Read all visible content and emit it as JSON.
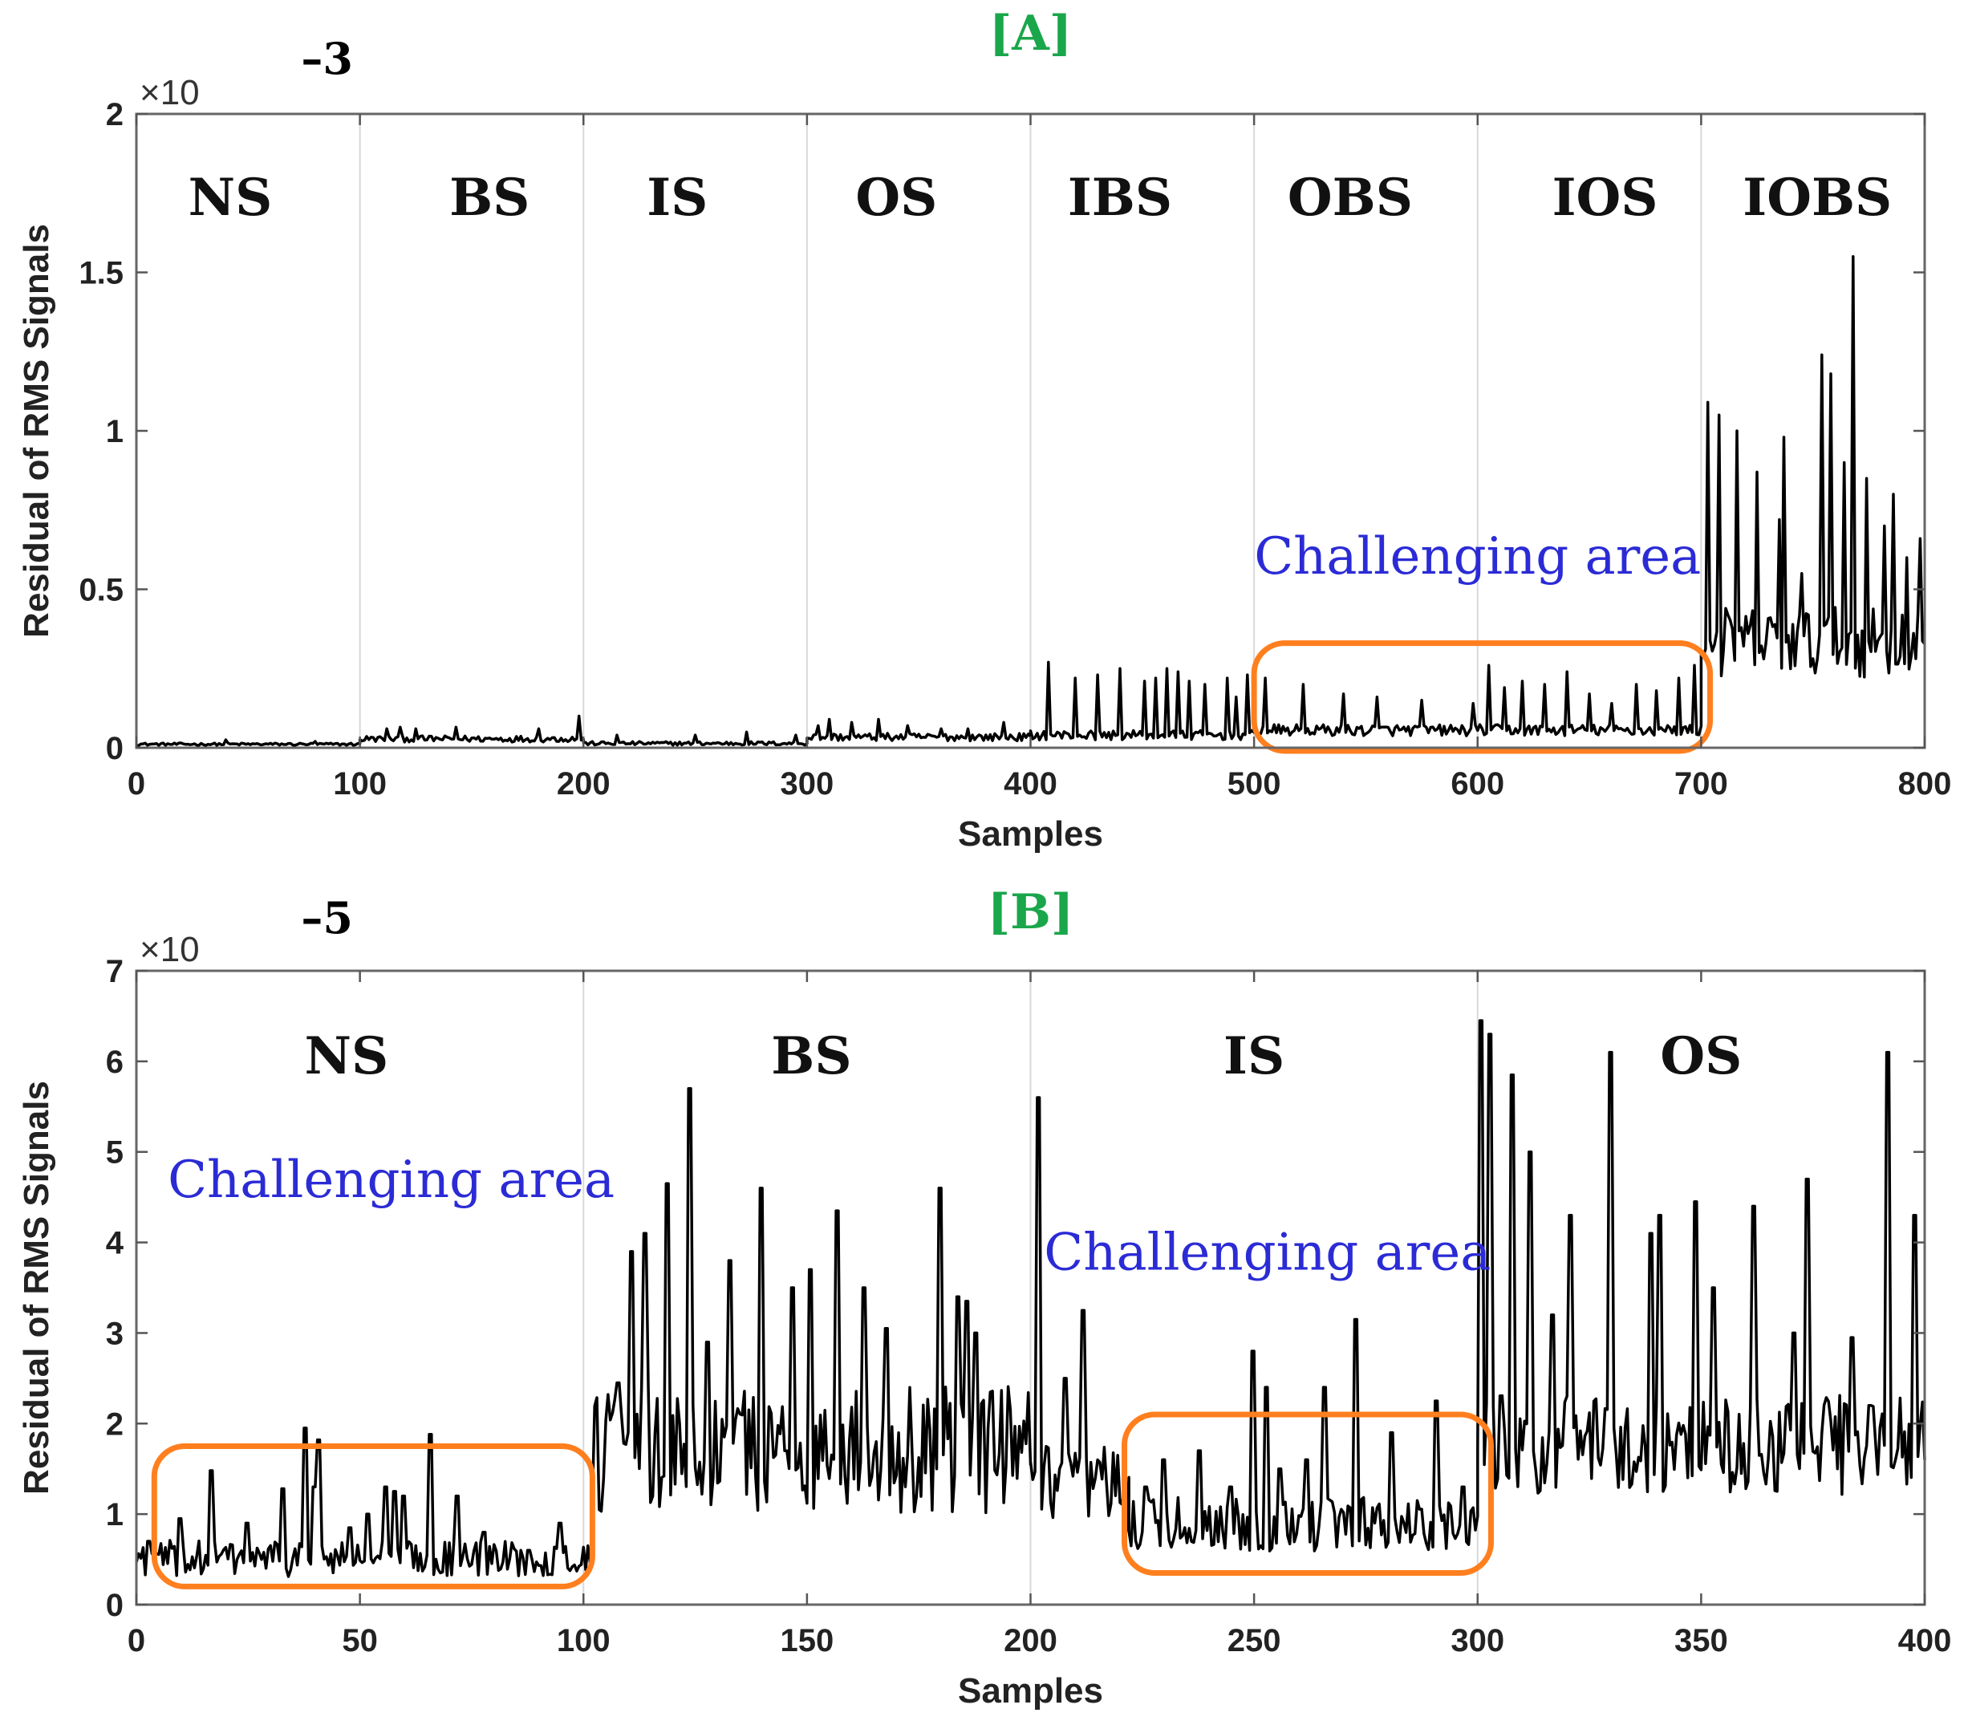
{
  "chart_data": [
    {
      "panel": "[A]",
      "type": "line",
      "title": "[A]",
      "xlabel": "Samples",
      "ylabel": "Residual of RMS Signals",
      "xlim": [
        0,
        800
      ],
      "ylim": [
        0,
        2
      ],
      "exponent_prefix": "×10",
      "exponent_power": "–3",
      "x_ticks": [
        "0",
        "100",
        "200",
        "300",
        "400",
        "500",
        "600",
        "700",
        "800"
      ],
      "y_ticks": [
        "0",
        "0.5",
        "1",
        "1.5",
        "2"
      ],
      "grid": false,
      "region_boundaries": [
        100,
        200,
        300,
        400,
        500,
        600,
        700
      ],
      "regions": [
        {
          "label": "NS",
          "x_center": 42
        },
        {
          "label": "BS",
          "x_center": 158
        },
        {
          "label": "IS",
          "x_center": 242
        },
        {
          "label": "OS",
          "x_center": 340
        },
        {
          "label": "IBS",
          "x_center": 440
        },
        {
          "label": "OBS",
          "x_center": 543
        },
        {
          "label": "IOS",
          "x_center": 657
        },
        {
          "label": "IOBS",
          "x_center": 752
        }
      ],
      "annotations": [
        {
          "text": "Challenging area",
          "x": 600,
          "y": 0.55
        }
      ],
      "highlight_boxes": [
        {
          "x0": 500,
          "x1": 704,
          "y0": -0.01,
          "y1": 0.33
        }
      ],
      "series": [
        {
          "name": "Residual",
          "segments": [
            {
              "x0": 0,
              "x1": 100,
              "base": 0.01,
              "noise": 0.004,
              "spikes": [
                [
                  40,
                  0.025
                ],
                [
                  80,
                  0.02
                ]
              ]
            },
            {
              "x0": 100,
              "x1": 200,
              "base": 0.025,
              "noise": 0.01,
              "spikes": [
                [
                  112,
                  0.06
                ],
                [
                  118,
                  0.065
                ],
                [
                  125,
                  0.06
                ],
                [
                  143,
                  0.065
                ],
                [
                  180,
                  0.06
                ],
                [
                  198,
                  0.1
                ]
              ]
            },
            {
              "x0": 200,
              "x1": 300,
              "base": 0.012,
              "noise": 0.006,
              "spikes": [
                [
                  215,
                  0.04
                ],
                [
                  250,
                  0.04
                ],
                [
                  273,
                  0.05
                ],
                [
                  295,
                  0.04
                ]
              ]
            },
            {
              "x0": 300,
              "x1": 400,
              "base": 0.03,
              "noise": 0.012,
              "spikes": [
                [
                  305,
                  0.07
                ],
                [
                  310,
                  0.09
                ],
                [
                  320,
                  0.08
                ],
                [
                  332,
                  0.09
                ],
                [
                  345,
                  0.07
                ],
                [
                  360,
                  0.06
                ],
                [
                  372,
                  0.06
                ],
                [
                  388,
                  0.08
                ]
              ]
            },
            {
              "x0": 400,
              "x1": 500,
              "base": 0.035,
              "noise": 0.015,
              "spikes": [
                [
                  408,
                  0.27
                ],
                [
                  420,
                  0.22
                ],
                [
                  430,
                  0.23
                ],
                [
                  440,
                  0.25
                ],
                [
                  451,
                  0.21
                ],
                [
                  456,
                  0.22
                ],
                [
                  461,
                  0.25
                ],
                [
                  466,
                  0.24
                ],
                [
                  471,
                  0.21
                ],
                [
                  478,
                  0.2
                ],
                [
                  488,
                  0.22
                ],
                [
                  492,
                  0.16
                ],
                [
                  497,
                  0.23
                ]
              ]
            },
            {
              "x0": 500,
              "x1": 700,
              "base": 0.05,
              "noise": 0.018,
              "spikes": [
                [
                  505,
                  0.22
                ],
                [
                  522,
                  0.2
                ],
                [
                  540,
                  0.17
                ],
                [
                  555,
                  0.16
                ],
                [
                  575,
                  0.15
                ],
                [
                  598,
                  0.14
                ],
                [
                  605,
                  0.26
                ],
                [
                  612,
                  0.19
                ],
                [
                  620,
                  0.21
                ],
                [
                  630,
                  0.2
                ],
                [
                  640,
                  0.24
                ],
                [
                  650,
                  0.17
                ],
                [
                  660,
                  0.14
                ],
                [
                  671,
                  0.2
                ],
                [
                  680,
                  0.18
                ],
                [
                  690,
                  0.22
                ],
                [
                  697,
                  0.26
                ]
              ]
            },
            {
              "x0": 700,
              "x1": 800,
              "base": 0.3,
              "noise": 0.11,
              "spikes": [
                [
                  703,
                  1.09
                ],
                [
                  708,
                  1.05
                ],
                [
                  716,
                  1.0
                ],
                [
                  725,
                  0.87
                ],
                [
                  735,
                  0.72
                ],
                [
                  737,
                  0.98
                ],
                [
                  745,
                  0.55
                ],
                [
                  754,
                  1.24
                ],
                [
                  758,
                  1.18
                ],
                [
                  764,
                  0.9
                ],
                [
                  768,
                  1.55
                ],
                [
                  774,
                  0.85
                ],
                [
                  782,
                  0.7
                ],
                [
                  786,
                  0.8
                ],
                [
                  792,
                  0.6
                ],
                [
                  798,
                  0.66
                ]
              ]
            }
          ]
        }
      ]
    },
    {
      "panel": "[B]",
      "type": "line",
      "title": "[B]",
      "xlabel": "Samples",
      "ylabel": "Residual of RMS Signals",
      "xlim": [
        0,
        400
      ],
      "ylim": [
        0,
        7
      ],
      "exponent_prefix": "×10",
      "exponent_power": "–5",
      "x_ticks": [
        "0",
        "50",
        "100",
        "150",
        "200",
        "250",
        "300",
        "350",
        "400"
      ],
      "y_ticks": [
        "0",
        "1",
        "2",
        "3",
        "4",
        "5",
        "6",
        "7"
      ],
      "grid": false,
      "region_boundaries": [
        100,
        200,
        300
      ],
      "regions": [
        {
          "label": "NS",
          "x_center": 47
        },
        {
          "label": "BS",
          "x_center": 151
        },
        {
          "label": "IS",
          "x_center": 250
        },
        {
          "label": "OS",
          "x_center": 350
        }
      ],
      "annotations": [
        {
          "text": "Challenging area",
          "x": 57,
          "y": 4.5
        },
        {
          "text": "Challenging area",
          "x": 253,
          "y": 3.7
        }
      ],
      "highlight_boxes": [
        {
          "x0": 4,
          "x1": 102,
          "y0": 0.2,
          "y1": 1.75
        },
        {
          "x0": 221,
          "x1": 303,
          "y0": 0.35,
          "y1": 2.1
        }
      ],
      "series": [
        {
          "name": "Residual",
          "segments": [
            {
              "x0": 0,
              "x1": 102,
              "base": 0.45,
              "noise": 0.2,
              "spikes": [
                [
                  3,
                  0.7
                ],
                [
                  10,
                  0.95
                ],
                [
                  17,
                  1.48
                ],
                [
                  25,
                  0.9
                ],
                [
                  33,
                  1.28
                ],
                [
                  38,
                  1.95
                ],
                [
                  40,
                  1.3
                ],
                [
                  41,
                  1.82
                ],
                [
                  48,
                  0.85
                ],
                [
                  52,
                  1.0
                ],
                [
                  56,
                  1.3
                ],
                [
                  58,
                  1.25
                ],
                [
                  60,
                  1.2
                ],
                [
                  66,
                  1.88
                ],
                [
                  72,
                  1.2
                ],
                [
                  78,
                  0.8
                ],
                [
                  88,
                  0.6
                ],
                [
                  95,
                  0.9
                ]
              ]
            },
            {
              "x0": 102,
              "x1": 200,
              "base": 1.5,
              "noise": 0.7,
              "spikes": [
                [
                  108,
                  2.45
                ],
                [
                  111,
                  3.9
                ],
                [
                  114,
                  4.1
                ],
                [
                  119,
                  4.65
                ],
                [
                  124,
                  5.7
                ],
                [
                  128,
                  2.9
                ],
                [
                  133,
                  3.8
                ],
                [
                  140,
                  4.6
                ],
                [
                  147,
                  3.5
                ],
                [
                  151,
                  3.7
                ],
                [
                  157,
                  4.35
                ],
                [
                  163,
                  3.5
                ],
                [
                  168,
                  3.05
                ],
                [
                  180,
                  4.6
                ],
                [
                  184,
                  3.4
                ],
                [
                  186,
                  3.35
                ],
                [
                  188,
                  3.0
                ]
              ]
            },
            {
              "x0": 200,
              "x1": 222,
              "base": 1.1,
              "noise": 0.5,
              "spikes": [
                [
                  202,
                  5.6
                ],
                [
                  208,
                  2.5
                ],
                [
                  212,
                  3.25
                ]
              ]
            },
            {
              "x0": 222,
              "x1": 300,
              "base": 0.8,
              "noise": 0.3,
              "spikes": [
                [
                  226,
                  1.3
                ],
                [
                  230,
                  1.6
                ],
                [
                  238,
                  1.7
                ],
                [
                  245,
                  1.3
                ],
                [
                  250,
                  2.8
                ],
                [
                  253,
                  2.4
                ],
                [
                  256,
                  1.5
                ],
                [
                  262,
                  1.6
                ],
                [
                  266,
                  2.4
                ],
                [
                  273,
                  3.15
                ],
                [
                  281,
                  1.9
                ],
                [
                  291,
                  2.25
                ],
                [
                  297,
                  1.3
                ]
              ]
            },
            {
              "x0": 300,
              "x1": 400,
              "base": 1.6,
              "noise": 0.55,
              "spikes": [
                [
                  301,
                  6.45
                ],
                [
                  303,
                  6.3
                ],
                [
                  308,
                  5.85
                ],
                [
                  312,
                  5.0
                ],
                [
                  317,
                  3.2
                ],
                [
                  321,
                  4.3
                ],
                [
                  330,
                  6.1
                ],
                [
                  339,
                  4.1
                ],
                [
                  341,
                  4.3
                ],
                [
                  349,
                  4.45
                ],
                [
                  353,
                  3.5
                ],
                [
                  362,
                  4.4
                ],
                [
                  371,
                  3.0
                ],
                [
                  374,
                  4.7
                ],
                [
                  384,
                  2.95
                ],
                [
                  388,
                  2.2
                ],
                [
                  392,
                  6.1
                ],
                [
                  398,
                  4.3
                ]
              ]
            }
          ]
        }
      ]
    }
  ]
}
